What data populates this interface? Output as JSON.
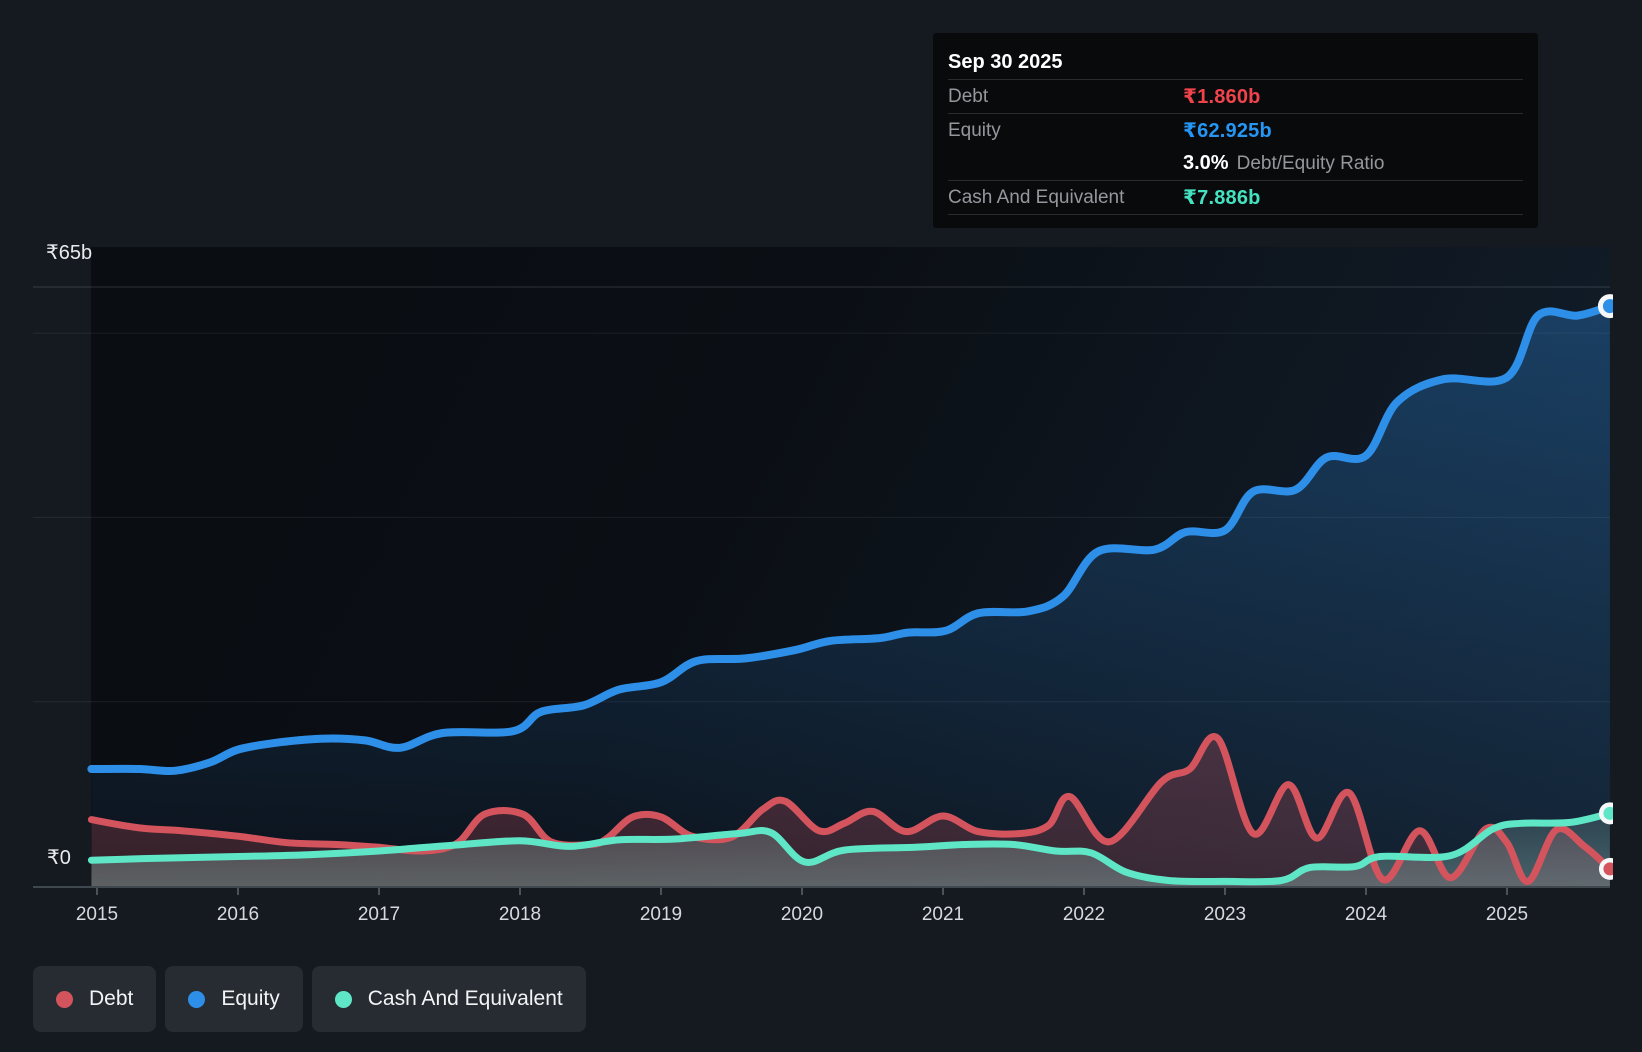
{
  "colors": {
    "debt": "#d4545e",
    "equity": "#2e8fe8",
    "cash": "#5fe6c6",
    "debt_text": "#f1434b",
    "equity_text": "#2596f3",
    "cash_text": "#45e2c1",
    "white": "#ffffff",
    "grid": "#ffffff",
    "pill_bg": "#272c33",
    "tooltip_bg": "#090a0c"
  },
  "tooltip": {
    "date": "Sep 30 2025",
    "debt_label": "Debt",
    "debt_value": "₹1.860b",
    "equity_label": "Equity",
    "equity_value": "₹62.925b",
    "ratio_value": "3.0%",
    "ratio_label": "Debt/Equity Ratio",
    "cash_label": "Cash And Equivalent",
    "cash_value": "₹7.886b"
  },
  "y_axis": {
    "top": "₹65b",
    "zero": "₹0"
  },
  "x_axis": {
    "years": [
      "2015",
      "2016",
      "2017",
      "2018",
      "2019",
      "2020",
      "2021",
      "2022",
      "2023",
      "2024",
      "2025"
    ]
  },
  "legend": {
    "items": [
      {
        "id": "debt",
        "label": "Debt"
      },
      {
        "id": "equity",
        "label": "Equity"
      },
      {
        "id": "cash",
        "label": "Cash And Equivalent"
      }
    ]
  },
  "chart_data": {
    "type": "area",
    "x_unit": "year",
    "x_range": [
      2014.96,
      2025.75
    ],
    "ylim": [
      0,
      65
    ],
    "y_unit": "₹ billions (INR)",
    "grid_values": [
      65,
      60,
      40,
      20,
      0
    ],
    "legend_position": "bottom-left",
    "hover_point": {
      "date": "Sep 30 2025",
      "debt": 1.86,
      "equity": 62.925,
      "cash": 7.886,
      "debt_equity_ratio_pct": 3.0
    },
    "series": [
      {
        "name": "Equity",
        "color": "#2e8fe8",
        "points": [
          [
            2014.96,
            12.7
          ],
          [
            2015.3,
            12.7
          ],
          [
            2015.55,
            12.5
          ],
          [
            2015.8,
            13.4
          ],
          [
            2016.0,
            14.8
          ],
          [
            2016.3,
            15.6
          ],
          [
            2016.62,
            16.0
          ],
          [
            2016.9,
            15.8
          ],
          [
            2017.15,
            15.0
          ],
          [
            2017.45,
            16.6
          ],
          [
            2017.95,
            16.8
          ],
          [
            2018.15,
            18.9
          ],
          [
            2018.45,
            19.6
          ],
          [
            2018.7,
            21.3
          ],
          [
            2019.0,
            22.1
          ],
          [
            2019.25,
            24.4
          ],
          [
            2019.6,
            24.7
          ],
          [
            2019.95,
            25.6
          ],
          [
            2020.2,
            26.6
          ],
          [
            2020.55,
            26.9
          ],
          [
            2020.75,
            27.5
          ],
          [
            2021.02,
            27.7
          ],
          [
            2021.25,
            29.6
          ],
          [
            2021.6,
            29.8
          ],
          [
            2021.85,
            31.4
          ],
          [
            2022.1,
            36.3
          ],
          [
            2022.5,
            36.5
          ],
          [
            2022.72,
            38.4
          ],
          [
            2023.0,
            38.6
          ],
          [
            2023.2,
            42.8
          ],
          [
            2023.5,
            43.0
          ],
          [
            2023.72,
            46.5
          ],
          [
            2024.0,
            46.7
          ],
          [
            2024.22,
            52.5
          ],
          [
            2024.55,
            55.0
          ],
          [
            2025.0,
            55.2
          ],
          [
            2025.22,
            61.9
          ],
          [
            2025.5,
            61.9
          ],
          [
            2025.73,
            62.925
          ]
        ]
      },
      {
        "name": "Debt",
        "color": "#d4545e",
        "points": [
          [
            2014.96,
            7.2
          ],
          [
            2015.3,
            6.3
          ],
          [
            2015.6,
            6.0
          ],
          [
            2016.0,
            5.4
          ],
          [
            2016.35,
            4.7
          ],
          [
            2016.7,
            4.5
          ],
          [
            2017.0,
            4.2
          ],
          [
            2017.3,
            3.8
          ],
          [
            2017.55,
            4.6
          ],
          [
            2017.75,
            7.8
          ],
          [
            2018.02,
            7.8
          ],
          [
            2018.22,
            4.8
          ],
          [
            2018.5,
            4.5
          ],
          [
            2018.62,
            5.2
          ],
          [
            2018.8,
            7.5
          ],
          [
            2019.0,
            7.5
          ],
          [
            2019.22,
            5.4
          ],
          [
            2019.5,
            5.3
          ],
          [
            2019.72,
            8.3
          ],
          [
            2019.88,
            9.2
          ],
          [
            2020.12,
            6.0
          ],
          [
            2020.3,
            6.8
          ],
          [
            2020.5,
            8.1
          ],
          [
            2020.74,
            5.9
          ],
          [
            2021.0,
            7.6
          ],
          [
            2021.25,
            5.9
          ],
          [
            2021.55,
            5.7
          ],
          [
            2021.75,
            6.6
          ],
          [
            2021.9,
            9.7
          ],
          [
            2022.18,
            4.8
          ],
          [
            2022.55,
            11.3
          ],
          [
            2022.75,
            12.7
          ],
          [
            2022.95,
            16.0
          ],
          [
            2023.2,
            5.7
          ],
          [
            2023.45,
            11.0
          ],
          [
            2023.65,
            5.2
          ],
          [
            2023.88,
            10.1
          ],
          [
            2024.12,
            0.7
          ],
          [
            2024.38,
            6.0
          ],
          [
            2024.6,
            0.9
          ],
          [
            2024.85,
            6.2
          ],
          [
            2025.0,
            4.7
          ],
          [
            2025.15,
            0.5
          ],
          [
            2025.35,
            6.1
          ],
          [
            2025.55,
            4.3
          ],
          [
            2025.73,
            1.86
          ]
        ]
      },
      {
        "name": "Cash And Equivalent",
        "color": "#5fe6c6",
        "points": [
          [
            2014.96,
            2.8
          ],
          [
            2015.4,
            3.0
          ],
          [
            2016.0,
            3.2
          ],
          [
            2016.5,
            3.4
          ],
          [
            2017.0,
            3.8
          ],
          [
            2017.5,
            4.4
          ],
          [
            2018.0,
            4.9
          ],
          [
            2018.35,
            4.3
          ],
          [
            2018.7,
            5.0
          ],
          [
            2019.1,
            5.1
          ],
          [
            2019.55,
            5.7
          ],
          [
            2019.78,
            5.8
          ],
          [
            2020.02,
            2.6
          ],
          [
            2020.3,
            3.9
          ],
          [
            2020.8,
            4.2
          ],
          [
            2021.15,
            4.5
          ],
          [
            2021.5,
            4.5
          ],
          [
            2021.8,
            3.8
          ],
          [
            2022.05,
            3.6
          ],
          [
            2022.3,
            1.5
          ],
          [
            2022.6,
            0.6
          ],
          [
            2023.0,
            0.5
          ],
          [
            2023.4,
            0.6
          ],
          [
            2023.6,
            2.0
          ],
          [
            2023.92,
            2.1
          ],
          [
            2024.1,
            3.2
          ],
          [
            2024.6,
            3.3
          ],
          [
            2024.9,
            6.2
          ],
          [
            2025.1,
            6.8
          ],
          [
            2025.45,
            6.9
          ],
          [
            2025.73,
            7.886
          ]
        ]
      }
    ]
  }
}
